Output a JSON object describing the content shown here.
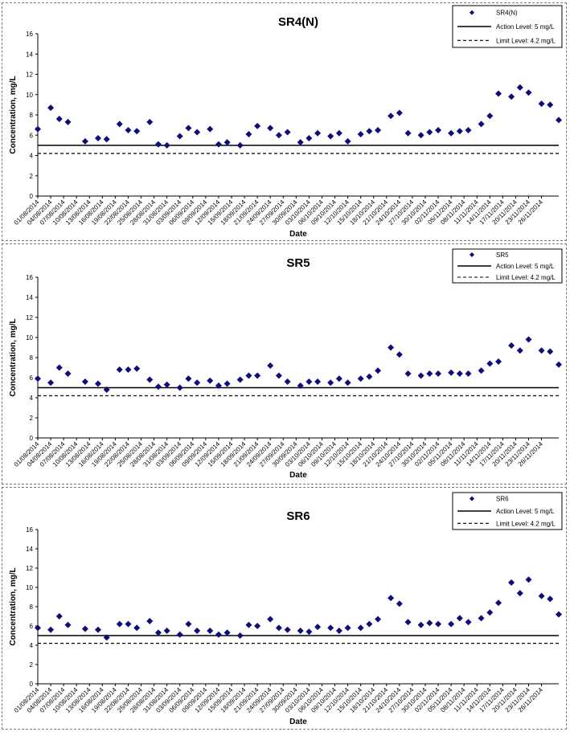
{
  "colors": {
    "series": "#0d0d7a",
    "action_line": "#000000",
    "limit_line": "#000000",
    "grid": "#c0c0c0",
    "border": "#7a7a7a"
  },
  "chart_data": [
    {
      "type": "scatter",
      "title": "SR4(N)",
      "xlabel": "Date",
      "ylabel": "Concentration, mg/L",
      "ylim": [
        0,
        16
      ],
      "yticks": [
        0,
        2,
        4,
        6,
        8,
        10,
        12,
        14,
        16
      ],
      "xlim": [
        "01/08/2014",
        "30/11/2014"
      ],
      "xticks": [
        "01/08/2014",
        "04/08/2014",
        "07/08/2014",
        "10/08/2014",
        "13/08/2014",
        "16/08/2014",
        "19/08/2014",
        "22/08/2014",
        "25/08/2014",
        "28/08/2014",
        "31/08/2014",
        "03/09/2014",
        "06/09/2014",
        "09/09/2014",
        "12/09/2014",
        "15/09/2014",
        "18/09/2014",
        "21/09/2014",
        "24/09/2014",
        "27/09/2014",
        "30/09/2014",
        "03/10/2014",
        "06/10/2014",
        "09/10/2014",
        "12/10/2014",
        "15/10/2014",
        "18/10/2014",
        "21/10/2014",
        "24/10/2014",
        "27/10/2014",
        "30/10/2014",
        "02/11/2014",
        "05/11/2014",
        "08/11/2014",
        "11/11/2014",
        "14/11/2014",
        "17/11/2014",
        "20/11/2014",
        "23/11/2014",
        "26/11/2014"
      ],
      "legend": {
        "placement": "top-right",
        "entries": [
          "SR4(N)",
          "Action Level: 5 mg/L",
          "Limit Level: 4.2 mg/L"
        ]
      },
      "action_level": 5,
      "limit_level": 4.2,
      "grid": false,
      "series": [
        {
          "name": "SR4(N)",
          "x": [
            "01/08/2014",
            "04/08/2014",
            "06/08/2014",
            "08/08/2014",
            "12/08/2014",
            "15/08/2014",
            "17/08/2014",
            "20/08/2014",
            "22/08/2014",
            "24/08/2014",
            "27/08/2014",
            "29/08/2014",
            "31/08/2014",
            "03/09/2014",
            "05/09/2014",
            "07/09/2014",
            "10/09/2014",
            "12/09/2014",
            "14/09/2014",
            "17/09/2014",
            "19/09/2014",
            "21/09/2014",
            "24/09/2014",
            "26/09/2014",
            "28/09/2014",
            "01/10/2014",
            "03/10/2014",
            "05/10/2014",
            "08/10/2014",
            "10/10/2014",
            "12/10/2014",
            "15/10/2014",
            "17/10/2014",
            "19/10/2014",
            "22/10/2014",
            "24/10/2014",
            "26/10/2014",
            "29/10/2014",
            "31/10/2014",
            "02/11/2014",
            "05/11/2014",
            "07/11/2014",
            "09/11/2014",
            "12/11/2014",
            "14/11/2014",
            "16/11/2014",
            "19/11/2014",
            "21/11/2014",
            "23/11/2014",
            "26/11/2014",
            "28/11/2014",
            "30/11/2014"
          ],
          "y": [
            6.6,
            8.7,
            7.6,
            7.3,
            5.4,
            5.7,
            5.6,
            7.1,
            6.5,
            6.4,
            7.3,
            5.1,
            5.0,
            5.9,
            6.7,
            6.3,
            6.6,
            5.1,
            5.3,
            5.0,
            6.1,
            6.9,
            6.7,
            6.0,
            6.3,
            5.3,
            5.7,
            6.2,
            5.9,
            6.2,
            5.4,
            6.1,
            6.4,
            6.5,
            7.9,
            8.2,
            6.2,
            6.0,
            6.3,
            6.5,
            6.2,
            6.4,
            6.5,
            7.1,
            7.9,
            10.1,
            9.8,
            10.7,
            10.2,
            9.1,
            9.0,
            7.5
          ]
        }
      ]
    },
    {
      "type": "scatter",
      "title": "SR5",
      "xlabel": "Date",
      "ylabel": "Concentration, mg/L",
      "ylim": [
        0,
        16
      ],
      "yticks": [
        0,
        2,
        4,
        6,
        8,
        10,
        12,
        14,
        16
      ],
      "xlim": [
        "01/08/2014",
        "30/11/2014"
      ],
      "xticks": [
        "01/08/2014",
        "04/08/2014",
        "07/08/2014",
        "10/08/2014",
        "13/08/2014",
        "16/08/2014",
        "19/08/2014",
        "22/08/2014",
        "25/08/2014",
        "28/08/2014",
        "31/08/2014",
        "03/09/2014",
        "06/09/2014",
        "09/09/2014",
        "12/09/2014",
        "15/09/2014",
        "18/09/2014",
        "21/09/2014",
        "24/09/2014",
        "27/09/2014",
        "30/09/2014",
        "03/10/2014",
        "06/10/2014",
        "09/10/2014",
        "12/10/2014",
        "15/10/2014",
        "18/10/2014",
        "21/10/2014",
        "24/10/2014",
        "27/10/2014",
        "30/10/2014",
        "02/11/2014",
        "05/11/2014",
        "08/11/2014",
        "11/11/2014",
        "14/11/2014",
        "17/11/2014",
        "20/11/2014",
        "23/11/2014",
        "26/11/2014"
      ],
      "legend": {
        "placement": "top-right",
        "entries": [
          "SR5",
          "Action Level: 5 mg/L",
          "Limit Level: 4.2 mg/L"
        ]
      },
      "action_level": 5,
      "limit_level": 4.2,
      "grid": false,
      "series": [
        {
          "name": "SR5",
          "x": [
            "01/08/2014",
            "04/08/2014",
            "06/08/2014",
            "08/08/2014",
            "12/08/2014",
            "15/08/2014",
            "17/08/2014",
            "20/08/2014",
            "22/08/2014",
            "24/08/2014",
            "27/08/2014",
            "29/08/2014",
            "31/08/2014",
            "03/09/2014",
            "05/09/2014",
            "07/09/2014",
            "10/09/2014",
            "12/09/2014",
            "14/09/2014",
            "17/09/2014",
            "19/09/2014",
            "21/09/2014",
            "24/09/2014",
            "26/09/2014",
            "28/09/2014",
            "01/10/2014",
            "03/10/2014",
            "05/10/2014",
            "08/10/2014",
            "10/10/2014",
            "12/10/2014",
            "15/10/2014",
            "17/10/2014",
            "19/10/2014",
            "22/10/2014",
            "24/10/2014",
            "26/10/2014",
            "29/10/2014",
            "31/10/2014",
            "02/11/2014",
            "05/11/2014",
            "07/11/2014",
            "09/11/2014",
            "12/11/2014",
            "14/11/2014",
            "16/11/2014",
            "19/11/2014",
            "21/11/2014",
            "23/11/2014",
            "26/11/2014",
            "28/11/2014",
            "30/11/2014"
          ],
          "y": [
            5.9,
            5.5,
            7.0,
            6.4,
            5.6,
            5.4,
            4.8,
            6.8,
            6.8,
            6.9,
            5.8,
            5.1,
            5.3,
            5.0,
            5.9,
            5.5,
            5.7,
            5.2,
            5.4,
            5.8,
            6.2,
            6.2,
            7.2,
            6.2,
            5.6,
            5.2,
            5.6,
            5.6,
            5.5,
            5.9,
            5.5,
            5.9,
            6.1,
            6.7,
            9.0,
            8.3,
            6.4,
            6.2,
            6.4,
            6.4,
            6.5,
            6.4,
            6.4,
            6.7,
            7.4,
            7.6,
            9.2,
            8.7,
            9.8,
            8.7,
            8.6,
            7.3
          ]
        }
      ]
    },
    {
      "type": "scatter",
      "title": "SR6",
      "xlabel": "Date",
      "ylabel": "Concentration, mg/L",
      "ylim": [
        0,
        16
      ],
      "yticks": [
        0,
        2,
        4,
        6,
        8,
        10,
        12,
        14,
        16
      ],
      "xlim": [
        "01/08/2014",
        "30/11/2014"
      ],
      "xticks": [
        "01/08/2014",
        "04/08/2014",
        "07/08/2014",
        "10/08/2014",
        "13/08/2014",
        "16/08/2014",
        "19/08/2014",
        "22/08/2014",
        "25/08/2014",
        "28/08/2014",
        "31/08/2014",
        "03/09/2014",
        "06/09/2014",
        "09/09/2014",
        "12/09/2014",
        "15/09/2014",
        "18/09/2014",
        "21/09/2014",
        "24/09/2014",
        "27/09/2014",
        "30/09/2014",
        "03/10/2014",
        "06/10/2014",
        "09/10/2014",
        "12/10/2014",
        "15/10/2014",
        "18/10/2014",
        "21/10/2014",
        "24/10/2014",
        "27/10/2014",
        "30/10/2014",
        "02/11/2014",
        "05/11/2014",
        "08/11/2014",
        "11/11/2014",
        "14/11/2014",
        "17/11/2014",
        "20/11/2014",
        "23/11/2014",
        "26/11/2014"
      ],
      "legend": {
        "placement": "top-right",
        "entries": [
          "SR6",
          "Action Level: 5 mg/L",
          "Limit Level: 4.2 mg/L"
        ]
      },
      "action_level": 5,
      "limit_level": 4.2,
      "grid": false,
      "series": [
        {
          "name": "SR6",
          "x": [
            "01/08/2014",
            "04/08/2014",
            "06/08/2014",
            "08/08/2014",
            "12/08/2014",
            "15/08/2014",
            "17/08/2014",
            "20/08/2014",
            "22/08/2014",
            "24/08/2014",
            "27/08/2014",
            "29/08/2014",
            "31/08/2014",
            "03/09/2014",
            "05/09/2014",
            "07/09/2014",
            "10/09/2014",
            "12/09/2014",
            "14/09/2014",
            "17/09/2014",
            "19/09/2014",
            "21/09/2014",
            "24/09/2014",
            "26/09/2014",
            "28/09/2014",
            "01/10/2014",
            "03/10/2014",
            "05/10/2014",
            "08/10/2014",
            "10/10/2014",
            "12/10/2014",
            "15/10/2014",
            "17/10/2014",
            "19/10/2014",
            "22/10/2014",
            "24/10/2014",
            "26/10/2014",
            "29/10/2014",
            "31/10/2014",
            "02/11/2014",
            "05/11/2014",
            "07/11/2014",
            "09/11/2014",
            "12/11/2014",
            "14/11/2014",
            "16/11/2014",
            "19/11/2014",
            "21/11/2014",
            "23/11/2014",
            "26/11/2014",
            "28/11/2014",
            "30/11/2014"
          ],
          "y": [
            5.8,
            5.6,
            7.0,
            6.1,
            5.7,
            5.6,
            4.8,
            6.2,
            6.2,
            5.8,
            6.5,
            5.3,
            5.5,
            5.1,
            6.2,
            5.5,
            5.5,
            5.1,
            5.3,
            5.0,
            6.1,
            6.0,
            6.7,
            5.8,
            5.6,
            5.5,
            5.4,
            5.9,
            5.8,
            5.5,
            5.8,
            5.8,
            6.2,
            6.7,
            8.9,
            8.3,
            6.4,
            6.1,
            6.3,
            6.2,
            6.2,
            6.8,
            6.4,
            6.8,
            7.4,
            8.4,
            10.5,
            9.4,
            10.8,
            9.1,
            8.8,
            7.2
          ]
        }
      ]
    }
  ]
}
